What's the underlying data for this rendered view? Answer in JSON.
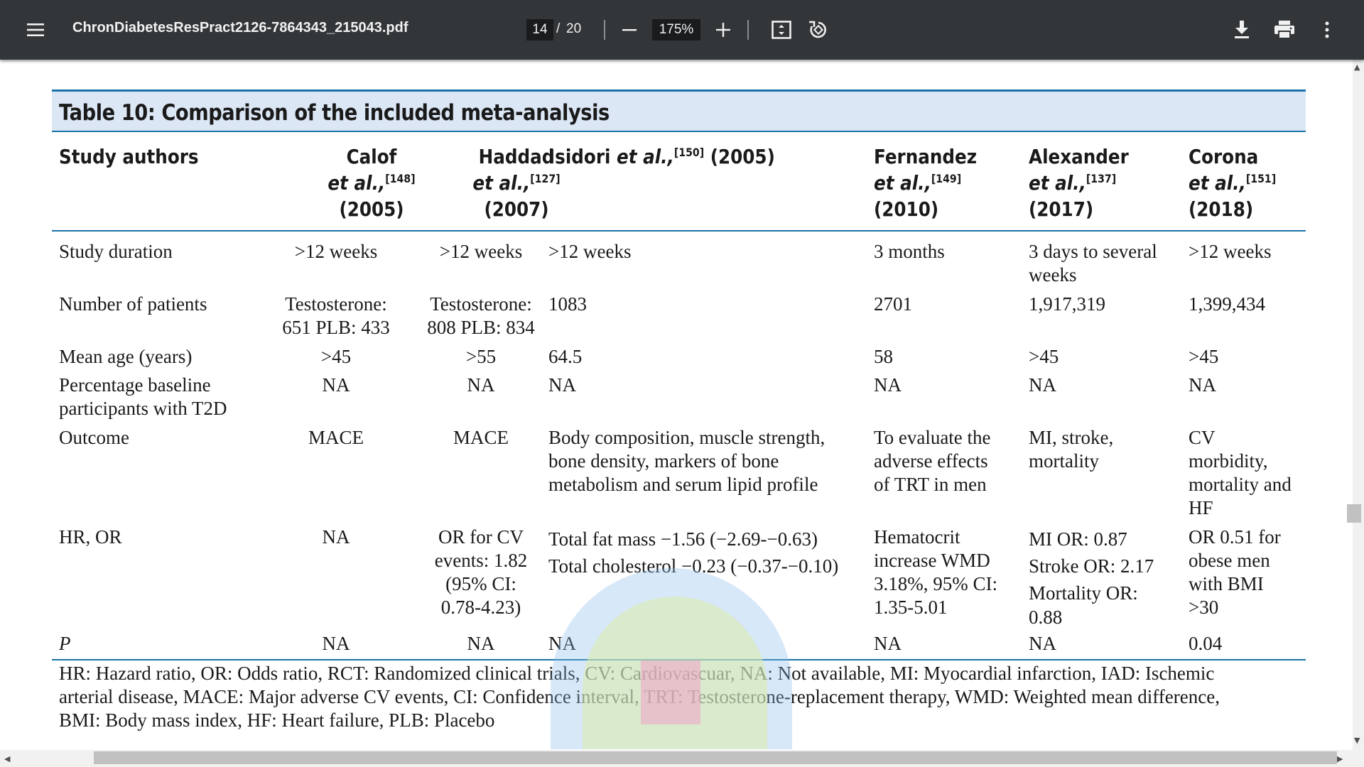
{
  "toolbar": {
    "menu_icon": "hamburger-menu-icon",
    "title": "ChronDiabetesResPract2126-7864343_215043.pdf",
    "page_current": "14",
    "page_separator": "/",
    "page_total": "20",
    "zoom_value": "175%",
    "icons": [
      "minus-icon",
      "plus-icon",
      "fit-page-icon",
      "rotate-icon",
      "download-icon",
      "print-icon",
      "more-vert-icon"
    ],
    "background": "#323639"
  },
  "table": {
    "caption": "Table 10: Comparison of the included meta-analysis",
    "header": {
      "col0": "Study authors",
      "col1": {
        "name": "Calof",
        "etal": "et al.,",
        "ref": "[148]",
        "year": "(2005)"
      },
      "col2": {
        "name": "Haddad",
        "etal": "et al.,",
        "ref": "[127]",
        "year": "(2007)"
      },
      "col3": {
        "name": "Isidori",
        "etal": "et al.,",
        "ref": "[150]",
        "year": "(2005)"
      },
      "col4": {
        "name": "Fernandez",
        "etal": "et al.,",
        "ref": "[149]",
        "year": "(2010)"
      },
      "col5": {
        "name": "Alexander",
        "etal": "et al.,",
        "ref": "[137]",
        "year": "(2017)"
      },
      "col6": {
        "name": "Corona",
        "etal": "et al.,",
        "ref": "[151]",
        "year": "(2018)"
      }
    },
    "rows": {
      "duration": {
        "label": "Study duration",
        "c1": ">12 weeks",
        "c2": ">12 weeks",
        "c3": ">12 weeks",
        "c4": "3 months",
        "c5_l1": "3 days to several",
        "c5_l2": "weeks",
        "c6": ">12 weeks"
      },
      "patients": {
        "label": "Number of patients",
        "c1_l1": "Testosterone:",
        "c1_l2": "651 PLB: 433",
        "c2_l1": "Testosterone:",
        "c2_l2": "808 PLB: 834",
        "c3": "1083",
        "c4": "2701",
        "c5": "1,917,319",
        "c6": "1,399,434"
      },
      "age": {
        "label": "Mean age (years)",
        "c1": ">45",
        "c2": ">55",
        "c3": "64.5",
        "c4": "58",
        "c5": ">45",
        "c6": ">45"
      },
      "baseline": {
        "label_l1": "Percentage baseline",
        "label_l2": "participants with T2D",
        "c1": "NA",
        "c2": "NA",
        "c3": "NA",
        "c4": "NA",
        "c5": "NA",
        "c6": "NA"
      },
      "outcome": {
        "label": "Outcome",
        "c1": "MACE",
        "c2": "MACE",
        "c3_l1": "Body composition, muscle strength,",
        "c3_l2": "bone density, markers of bone",
        "c3_l3": "metabolism and serum lipid profile",
        "c4_l1": "To evaluate the",
        "c4_l2": "adverse effects",
        "c4_l3": "of TRT in men",
        "c5_l1": "MI, stroke,",
        "c5_l2": "mortality",
        "c6_l1": "CV",
        "c6_l2": "morbidity,",
        "c6_l3": "mortality and",
        "c6_l4": "HF"
      },
      "hr_or": {
        "label": "HR, OR",
        "c1": "NA",
        "c2_l1": "OR for CV",
        "c2_l2": "events: 1.82",
        "c2_l3": "(95% CI:",
        "c2_l4": "0.78-4.23)",
        "c3_l1": "Total fat mass −1.56 (−2.69-−0.63)",
        "c3_l2": "Total cholesterol −0.23 (−0.37-−0.10)",
        "c4_l1": "Hematocrit",
        "c4_l2": "increase WMD",
        "c4_l3": "3.18%, 95% CI:",
        "c4_l4": "1.35-5.01",
        "c5_l1": "MI OR: 0.87",
        "c5_l2": "Stroke OR: 2.17",
        "c5_l3": "Mortality OR:",
        "c5_l4": "0.88",
        "c6_l1": "OR 0.51 for",
        "c6_l2": "obese men",
        "c6_l3": "with BMI",
        "c6_l4": ">30"
      },
      "p": {
        "label": "P",
        "c1": "NA",
        "c2": "NA",
        "c3": "NA",
        "c4": "NA",
        "c5": "NA",
        "c6": "0.04"
      }
    },
    "footnote_l1": "HR: Hazard ratio, OR: Odds ratio, RCT: Randomized clinical trials, CV: Cardiovascuar, NA: Not available, MI: Myocardial infarction, IAD: Ischemic",
    "footnote_l2": "arterial disease, MACE: Major adverse CV events, CI: Confidence interval, TRT: Testosterone-replacement therapy, WMD: Weighted mean difference,",
    "footnote_l3": "BMI: Body mass index, HF: Heart failure, PLB: Placebo",
    "accent": "#1a73a8",
    "caption_bg": "#dce7f5"
  }
}
